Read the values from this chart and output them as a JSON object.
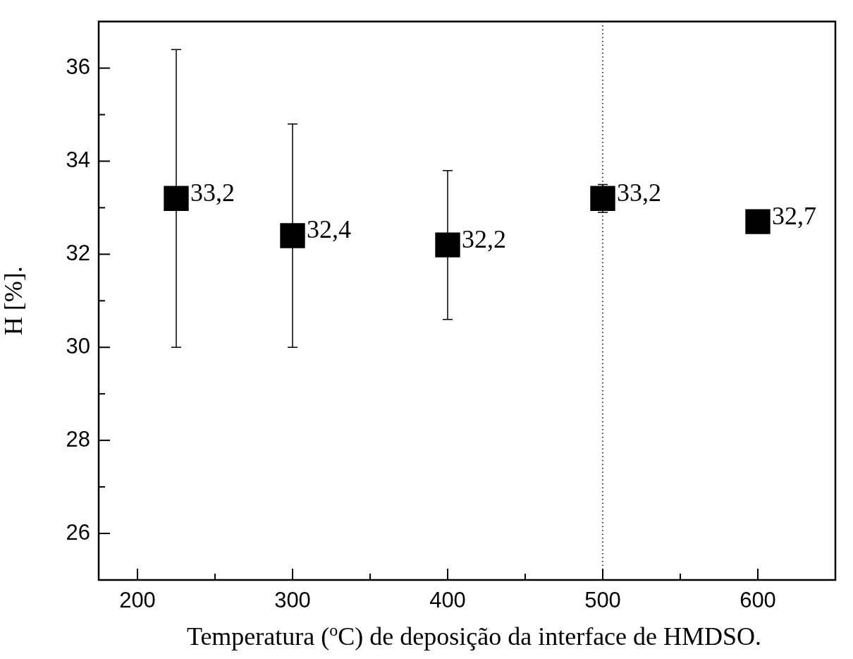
{
  "chart_data": {
    "type": "scatter",
    "xlabel": "Temperatura ($^{o}$C) de deposição da interface de HMDSO.",
    "ylabel": "H [%].",
    "x": [
      225,
      300,
      400,
      500,
      600
    ],
    "series": [
      {
        "color": "#000000",
        "values": [
          33.2,
          32.4,
          32.2,
          33.2,
          32.7
        ],
        "errors": [
          3.2,
          2.4,
          1.6,
          0.3,
          null
        ],
        "value_labels": [
          "33,2",
          "32,4",
          "32,2",
          "33,2",
          "32,7"
        ]
      }
    ],
    "xlim": [
      175,
      650
    ],
    "xticks": [
      200,
      {
        "value": 250,
        "label": null
      },
      300,
      {
        "value": 350,
        "label": null
      },
      400,
      {
        "value": 450,
        "label": null
      },
      500,
      {
        "value": 550,
        "label": null
      },
      600
    ],
    "ylim": [
      25,
      37
    ],
    "yticks": [
      26,
      {
        "value": 27,
        "label": null
      },
      28,
      {
        "value": 29,
        "label": null
      },
      30,
      {
        "value": 31,
        "label": null
      },
      32,
      {
        "value": 33,
        "label": null
      },
      34,
      {
        "value": 35,
        "label": null
      },
      36
    ],
    "ref_lines": [
      {
        "axis": "x",
        "value": 500,
        "line_style": "dotted",
        "color": "#000000"
      }
    ],
    "marker": "square",
    "grid": false,
    "legend": false
  }
}
